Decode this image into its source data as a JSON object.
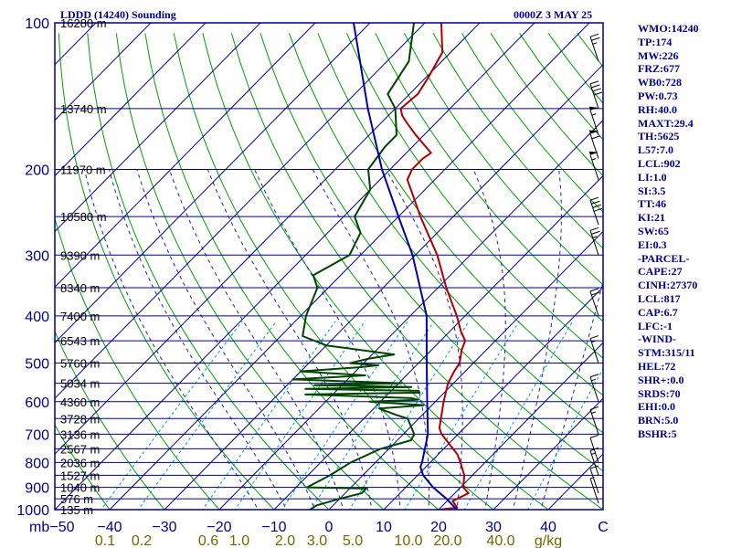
{
  "header": {
    "station": "LDDD (14240) Sounding",
    "time": "0000Z  3 MAY 25"
  },
  "indices": [
    "WMO:14240",
    "TP:174",
    "MW:226",
    "FRZ:677",
    "WB0:728",
    "PW:0.73",
    "RH:40.0",
    "MAXT:29.4",
    "TH:5625",
    "L57:7.0",
    "LCL:902",
    "LI:1.0",
    "SI:3.5",
    "TT:46",
    "KI:21",
    "SW:65",
    "EI:0.3",
    "-PARCEL-",
    "CAPE:27",
    "CINH:27370",
    "LCL:817",
    "CAP:6.7",
    "LFC:-1",
    "-WIND-",
    "STM:315/11",
    "HEL:72",
    "SHR+:0.0",
    "SRDS:70",
    "EHI:0.0",
    "BRN:5.0",
    "BSHR:5"
  ],
  "chart_data": {
    "type": "line",
    "title": "LDDD (14240) Sounding",
    "subtitle": "0000Z  3 MAY 25",
    "ylabel": "mb",
    "xlim": [
      -50,
      50
    ],
    "ylim": [
      1000,
      100
    ],
    "y_scale": "log",
    "y_axis_ticks": [
      100,
      200,
      300,
      400,
      500,
      600,
      700,
      800,
      900,
      1000
    ],
    "x_axis_ticks": [
      "−50",
      "−40",
      "−30",
      "−20",
      "−10",
      "0",
      "10",
      "20",
      "30",
      "40",
      "C"
    ],
    "mixing_ratio_labels": [
      "0.1",
      "0.2",
      "0.6",
      "1.0",
      "2.0",
      "3.0",
      "5.0",
      "10.0",
      "20.0",
      "40.0",
      "g/kg"
    ],
    "height_labels": [
      {
        "p": 100,
        "text": "16280 m"
      },
      {
        "p": 150,
        "text": "13740 m"
      },
      {
        "p": 200,
        "text": "11970 m"
      },
      {
        "p": 250,
        "text": "10580 m"
      },
      {
        "p": 300,
        "text": "9390 m"
      },
      {
        "p": 350,
        "text": "8340 m"
      },
      {
        "p": 400,
        "text": "7400 m"
      },
      {
        "p": 450,
        "text": "6543 m"
      },
      {
        "p": 500,
        "text": "5760 m"
      },
      {
        "p": 550,
        "text": "5034 m"
      },
      {
        "p": 600,
        "text": "4360 m"
      },
      {
        "p": 650,
        "text": "3728 m"
      },
      {
        "p": 700,
        "text": "3136 m"
      },
      {
        "p": 750,
        "text": "2567 m"
      },
      {
        "p": 800,
        "text": "2036 m"
      },
      {
        "p": 850,
        "text": "1527 m"
      },
      {
        "p": 900,
        "text": "1040 m"
      },
      {
        "p": 950,
        "text": "576 m"
      },
      {
        "p": 1000,
        "text": "135 m"
      }
    ],
    "series": [
      {
        "name": "temperature",
        "color": "#b00000",
        "points": [
          [
            1002,
            19.5
          ],
          [
            990,
            23.0
          ],
          [
            975,
            22.0
          ],
          [
            960,
            21.0
          ],
          [
            925,
            22.5
          ],
          [
            900,
            20.5
          ],
          [
            850,
            18.5
          ],
          [
            800,
            15.5
          ],
          [
            770,
            13.5
          ],
          [
            700,
            7.0
          ],
          [
            680,
            5.5
          ],
          [
            600,
            1.5
          ],
          [
            550,
            -1.0
          ],
          [
            520,
            -2.0
          ],
          [
            500,
            -2.5
          ],
          [
            470,
            -4.5
          ],
          [
            450,
            -5.5
          ],
          [
            430,
            -8.0
          ],
          [
            400,
            -11.5
          ],
          [
            350,
            -18.5
          ],
          [
            300,
            -26.0
          ],
          [
            250,
            -36.0
          ],
          [
            210,
            -45.0
          ],
          [
            200,
            -46.0
          ],
          [
            190,
            -46.0
          ],
          [
            185,
            -45.5
          ],
          [
            170,
            -51.5
          ],
          [
            160,
            -55.5
          ],
          [
            155,
            -57.5
          ],
          [
            150,
            -59.0
          ],
          [
            140,
            -58.5
          ],
          [
            130,
            -59.5
          ],
          [
            115,
            -61.5
          ],
          [
            100,
            -67.0
          ]
        ]
      },
      {
        "name": "dewpoint",
        "color": "#004400",
        "points": [
          [
            1002,
            -3.5
          ],
          [
            980,
            -3.0
          ],
          [
            950,
            0.0
          ],
          [
            925,
            3.0
          ],
          [
            905,
            3.0
          ],
          [
            900,
            -8.0
          ],
          [
            850,
            -6.0
          ],
          [
            800,
            -4.5
          ],
          [
            750,
            -1.5
          ],
          [
            720,
            2.5
          ],
          [
            700,
            2.0
          ],
          [
            650,
            -2.0
          ],
          [
            640,
            -4.5
          ],
          [
            620,
            -9.0
          ],
          [
            610,
            -1.5
          ],
          [
            600,
            -12.0
          ],
          [
            595,
            -3.5
          ],
          [
            590,
            -5.0
          ],
          [
            580,
            -25.0
          ],
          [
            575,
            -4.5
          ],
          [
            570,
            -5.0
          ],
          [
            565,
            -26.0
          ],
          [
            560,
            -7.0
          ],
          [
            555,
            -25.0
          ],
          [
            550,
            -9.5
          ],
          [
            540,
            -30.0
          ],
          [
            530,
            -17.5
          ],
          [
            520,
            -30.0
          ],
          [
            510,
            -20.0
          ],
          [
            505,
            -17.0
          ],
          [
            500,
            -22.5
          ],
          [
            490,
            -20.0
          ],
          [
            480,
            -16.0
          ],
          [
            460,
            -30.0
          ],
          [
            440,
            -36.0
          ],
          [
            400,
            -39.0
          ],
          [
            350,
            -42.0
          ],
          [
            330,
            -45.0
          ],
          [
            300,
            -42.0
          ],
          [
            270,
            -44.0
          ],
          [
            250,
            -48.0
          ],
          [
            220,
            -50.0
          ],
          [
            200,
            -54.0
          ],
          [
            180,
            -55.0
          ],
          [
            170,
            -55.0
          ],
          [
            150,
            -60.0
          ],
          [
            140,
            -64.0
          ],
          [
            120,
            -66.0
          ],
          [
            100,
            -72.0
          ]
        ]
      },
      {
        "name": "parcel",
        "color": "#0000aa",
        "points": [
          [
            1002,
            23.5
          ],
          [
            950,
            19.5
          ],
          [
            900,
            15.0
          ],
          [
            850,
            11.0
          ],
          [
            817,
            9.0
          ],
          [
            800,
            8.5
          ],
          [
            700,
            4.5
          ],
          [
            600,
            -1.5
          ],
          [
            500,
            -8.5
          ],
          [
            400,
            -17.0
          ],
          [
            300,
            -30.5
          ],
          [
            250,
            -40.0
          ],
          [
            200,
            -51.5
          ],
          [
            150,
            -65.0
          ],
          [
            100,
            -83.0
          ]
        ]
      }
    ],
    "wind_barbs": [
      {
        "p": 970,
        "spd": 5
      },
      {
        "p": 925,
        "spd": 10
      },
      {
        "p": 850,
        "spd": 15
      },
      {
        "p": 800,
        "spd": 10
      },
      {
        "p": 700,
        "spd": 15
      },
      {
        "p": 600,
        "spd": 15
      },
      {
        "p": 500,
        "spd": 15
      },
      {
        "p": 400,
        "spd": 20
      },
      {
        "p": 300,
        "spd": 25
      },
      {
        "p": 260,
        "spd": 40
      },
      {
        "p": 210,
        "spd": 55
      },
      {
        "p": 190,
        "spd": 60
      },
      {
        "p": 170,
        "spd": 55
      },
      {
        "p": 150,
        "spd": 40
      },
      {
        "p": 120,
        "spd": 25
      }
    ],
    "colors": {
      "isobar": "#00008b",
      "isotherm": "#00008b",
      "dry_adiabat": "#00a000",
      "moist_adiabat": "#2020c0",
      "mixing_ratio": "#00a0c0",
      "frame": "#00008b"
    }
  }
}
